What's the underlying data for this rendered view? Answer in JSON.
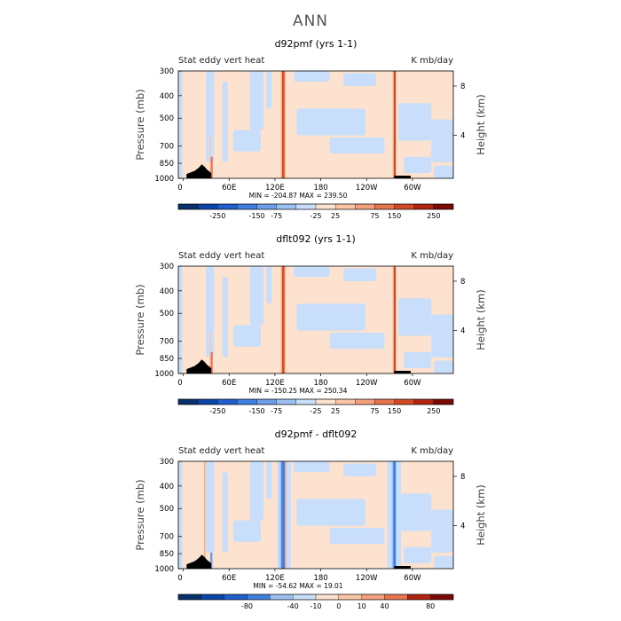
{
  "page": {
    "title": "ANN"
  },
  "colors": {
    "palette": [
      "#08306b",
      "#0b45a8",
      "#1f5fcf",
      "#3f7fe0",
      "#6d9fea",
      "#9dc0f3",
      "#c9defa",
      "#fde2cf",
      "#fbc6a6",
      "#f4a07c",
      "#e8744e",
      "#d44a26",
      "#b02410",
      "#7a0a05"
    ],
    "background_field": "#fde2cf",
    "secondary_field": "#c9defa",
    "terrain": "#000000"
  },
  "chart_data": [
    {
      "type": "heatmap",
      "title": "d92pmf (yrs 1-1)",
      "left_label": "Stat eddy vert heat",
      "right_label": "K mb/day",
      "ylabel": "Pressure (mb)",
      "ylabel_right": "Height (km)",
      "x_ticks": [
        "0",
        "60E",
        "120E",
        "180",
        "120W",
        "60W"
      ],
      "y_ticks": [
        "300",
        "400",
        "500",
        "700",
        "850",
        "1000"
      ],
      "y_ticks_right": [
        "8",
        "4"
      ],
      "min_max": "MIN = -204.87  MAX = 239.50",
      "colorbar_labels": [
        "-250",
        "-150",
        "-75",
        "-25",
        "25",
        "75",
        "150",
        "250"
      ],
      "min": -204.87,
      "max": 239.5
    },
    {
      "type": "heatmap",
      "title": "dflt092 (yrs 1-1)",
      "left_label": "Stat eddy vert heat",
      "right_label": "K mb/day",
      "ylabel": "Pressure (mb)",
      "ylabel_right": "Height (km)",
      "x_ticks": [
        "0",
        "60E",
        "120E",
        "180",
        "120W",
        "60W"
      ],
      "y_ticks": [
        "300",
        "400",
        "500",
        "700",
        "850",
        "1000"
      ],
      "y_ticks_right": [
        "8",
        "4"
      ],
      "min_max": "MIN = -150.25  MAX = 250.34",
      "colorbar_labels": [
        "-250",
        "-150",
        "-75",
        "-25",
        "25",
        "75",
        "150",
        "250"
      ],
      "min": -150.25,
      "max": 250.34
    },
    {
      "type": "heatmap",
      "title": "d92pmf - dflt092",
      "left_label": "Stat eddy vert heat",
      "right_label": "K mb/day",
      "ylabel": "Pressure (mb)",
      "ylabel_right": "Height (km)",
      "x_ticks": [
        "0",
        "60E",
        "120E",
        "180",
        "120W",
        "60W"
      ],
      "y_ticks": [
        "300",
        "400",
        "500",
        "700",
        "850",
        "1000"
      ],
      "y_ticks_right": [
        "8",
        "4"
      ],
      "min_max": "MIN = -54.62  MAX =  19.01",
      "colorbar_labels": [
        "-80",
        "-40",
        "-10",
        "0",
        "10",
        "40",
        "80"
      ],
      "min": -54.62,
      "max": 19.01
    }
  ]
}
